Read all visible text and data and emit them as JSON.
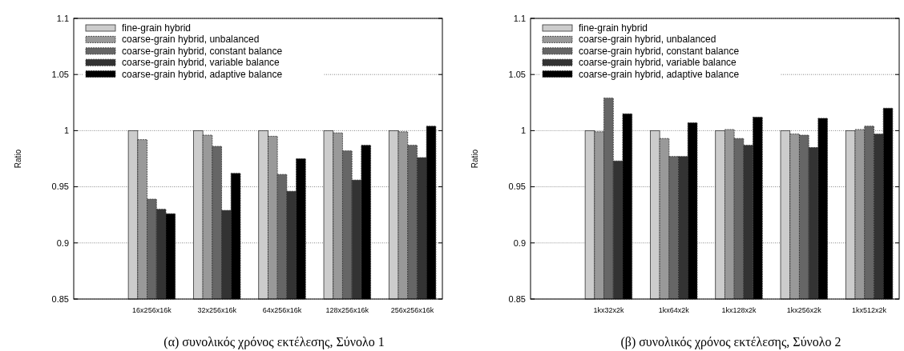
{
  "chart_data": [
    {
      "type": "bar",
      "title": "(α) συνολικός χρόνος εκτέλεσης, Σύνολο 1",
      "ylabel": "Ratio",
      "categories": [
        "16x256x16k",
        "32x256x16k",
        "64x256x16k",
        "128x256x16k",
        "256x256x16k"
      ],
      "series": [
        {
          "name": "fine-grain hybrid",
          "color": "#cccccc",
          "values": [
            1,
            1,
            1,
            1,
            1
          ]
        },
        {
          "name": "coarse-grain hybrid, unbalanced",
          "color": "#999999",
          "values": [
            0.992,
            0.996,
            0.995,
            0.998,
            0.999
          ]
        },
        {
          "name": "coarse-grain hybrid, constant balance",
          "color": "#666666",
          "values": [
            0.939,
            0.986,
            0.961,
            0.982,
            0.987
          ]
        },
        {
          "name": "coarse-grain hybrid, variable balance",
          "color": "#333333",
          "values": [
            0.93,
            0.929,
            0.946,
            0.956,
            0.976
          ]
        },
        {
          "name": "coarse-grain hybrid, adaptive balance",
          "color": "#000000",
          "values": [
            0.926,
            0.962,
            0.975,
            0.987,
            1.004
          ]
        }
      ],
      "ylim": [
        0.85,
        1.1
      ],
      "yticks": [
        0.85,
        0.9,
        0.95,
        1,
        1.05,
        1.1
      ],
      "grid": "y",
      "legend": "top left"
    },
    {
      "type": "bar",
      "title": "(β) συνολικός χρόνος εκτέλεσης, Σύνολο 2",
      "ylabel": "Ratio",
      "categories": [
        "1kx32x2k",
        "1kx64x2k",
        "1kx128x2k",
        "1kx256x2k",
        "1kx512x2k"
      ],
      "series": [
        {
          "name": "fine-grain hybrid",
          "color": "#cccccc",
          "values": [
            1,
            1,
            1,
            1,
            1
          ]
        },
        {
          "name": "coarse-grain hybrid, unbalanced",
          "color": "#999999",
          "values": [
            0.999,
            0.993,
            1.001,
            0.997,
            1.001
          ]
        },
        {
          "name": "coarse-grain hybrid, constant balance",
          "color": "#666666",
          "values": [
            1.029,
            0.977,
            0.993,
            0.996,
            1.004
          ]
        },
        {
          "name": "coarse-grain hybrid, variable balance",
          "color": "#333333",
          "values": [
            0.973,
            0.977,
            0.987,
            0.985,
            0.997
          ]
        },
        {
          "name": "coarse-grain hybrid, adaptive balance",
          "color": "#000000",
          "values": [
            1.015,
            1.007,
            1.012,
            1.011,
            1.02
          ]
        }
      ],
      "ylim": [
        0.85,
        1.1
      ],
      "yticks": [
        0.85,
        0.9,
        0.95,
        1,
        1.05,
        1.1
      ],
      "grid": "y",
      "legend": "top left"
    }
  ]
}
